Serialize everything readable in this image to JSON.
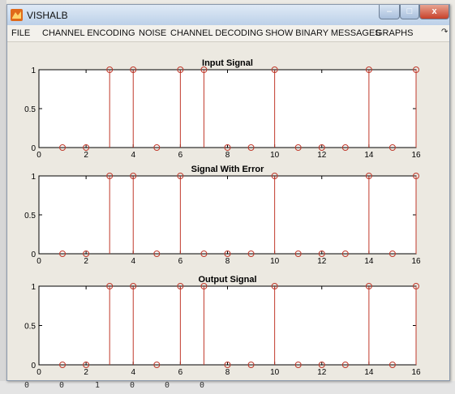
{
  "window": {
    "title": "VISHALB",
    "buttons": {
      "minimize": "–",
      "maximize": "□",
      "close": "x"
    }
  },
  "menu": [
    {
      "label": "FILE"
    },
    {
      "label": "CHANNEL ENCODING"
    },
    {
      "label": "NOISE"
    },
    {
      "label": "CHANNEL DECODING"
    },
    {
      "label": "SHOW BINARY MESSAGES"
    },
    {
      "label": "GRAPHS"
    }
  ],
  "menu_arrow": "↷",
  "background_digits": [
    "0",
    "0",
    "1",
    "0",
    "0",
    "0"
  ],
  "colors": {
    "stem": "#c0392b",
    "marker": "#c0392b",
    "axes": "#000000",
    "plot_bg": "#ffffff"
  },
  "chart_data": [
    {
      "type": "stem",
      "title": "Input Signal",
      "x": [
        1,
        2,
        3,
        4,
        5,
        6,
        7,
        8,
        9,
        10,
        11,
        12,
        13,
        14,
        15,
        16
      ],
      "values": [
        0,
        0,
        1,
        1,
        0,
        1,
        1,
        0,
        0,
        1,
        0,
        0,
        0,
        1,
        0,
        1
      ],
      "xlim": [
        0,
        16
      ],
      "ylim": [
        0,
        1
      ],
      "xticks": [
        "0",
        "2",
        "4",
        "6",
        "8",
        "10",
        "12",
        "14",
        "16"
      ],
      "yticks": [
        "0",
        "0.5",
        "1"
      ]
    },
    {
      "type": "stem",
      "title": "Signal With Error",
      "x": [
        1,
        2,
        3,
        4,
        5,
        6,
        7,
        8,
        9,
        10,
        11,
        12,
        13,
        14,
        15,
        16
      ],
      "values": [
        0,
        0,
        1,
        1,
        0,
        1,
        0,
        0,
        0,
        1,
        0,
        0,
        0,
        1,
        0,
        1
      ],
      "xlim": [
        0,
        16
      ],
      "ylim": [
        0,
        1
      ],
      "xticks": [
        "0",
        "2",
        "4",
        "6",
        "8",
        "10",
        "12",
        "14",
        "16"
      ],
      "yticks": [
        "0",
        "0.5",
        "1"
      ]
    },
    {
      "type": "stem",
      "title": "Output Signal",
      "x": [
        1,
        2,
        3,
        4,
        5,
        6,
        7,
        8,
        9,
        10,
        11,
        12,
        13,
        14,
        15,
        16
      ],
      "values": [
        0,
        0,
        1,
        1,
        0,
        1,
        1,
        0,
        0,
        1,
        0,
        0,
        0,
        1,
        0,
        1
      ],
      "xlim": [
        0,
        16
      ],
      "ylim": [
        0,
        1
      ],
      "xticks": [
        "0",
        "2",
        "4",
        "6",
        "8",
        "10",
        "12",
        "14",
        "16"
      ],
      "yticks": [
        "0",
        "0.5",
        "1"
      ]
    }
  ]
}
